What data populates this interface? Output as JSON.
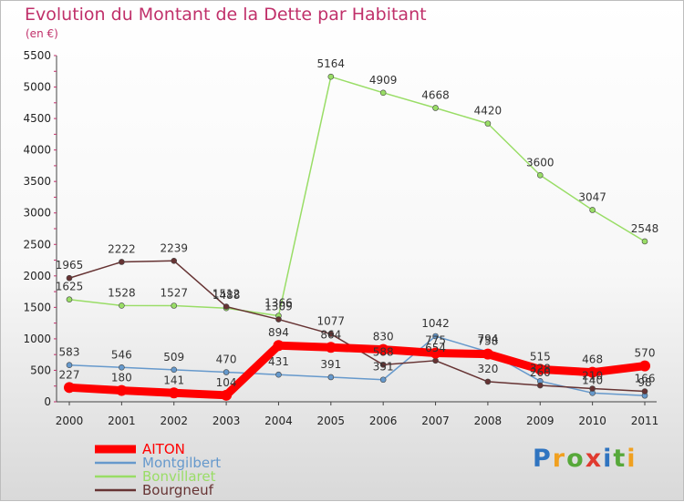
{
  "chart_data": {
    "type": "line",
    "title": "Evolution du Montant de la Dette par Habitant",
    "subtitle": "(en €)",
    "xlabel": "",
    "ylabel": "",
    "x": [
      "2000",
      "2001",
      "2002",
      "2003",
      "2004",
      "2005",
      "2006",
      "2007",
      "2008",
      "2009",
      "2010",
      "2011"
    ],
    "ylim": [
      0,
      5500
    ],
    "yticks": [
      0,
      500,
      1000,
      1500,
      2000,
      2500,
      3000,
      3500,
      4000,
      4500,
      5000,
      5500
    ],
    "grid": false,
    "legend_position": "bottom-left",
    "series": [
      {
        "name": "AITON",
        "color": "#ff0000",
        "emphasis": true,
        "values": [
          227,
          180,
          141,
          104,
          894,
          864,
          830,
          775,
          758,
          515,
          468,
          570
        ]
      },
      {
        "name": "Montgilbert",
        "color": "#6699cc",
        "values": [
          583,
          546,
          509,
          470,
          431,
          391,
          351,
          1042,
          794,
          328,
          140,
          98
        ]
      },
      {
        "name": "Bonvillaret",
        "color": "#99dd66",
        "values": [
          1625,
          1528,
          1527,
          1488,
          1366,
          5164,
          4909,
          4668,
          4420,
          3600,
          3047,
          2548
        ]
      },
      {
        "name": "Bourgneuf",
        "color": "#663333",
        "values": [
          1965,
          2222,
          2239,
          1512,
          1309,
          1077,
          588,
          654,
          320,
          260,
          210,
          166
        ]
      }
    ]
  },
  "logo": {
    "letters": [
      "P",
      "r",
      "o",
      "x",
      "i",
      "t",
      "i"
    ],
    "colors": [
      "#2f74c0",
      "#f0a020",
      "#57a83a",
      "#e03a2f",
      "#2f74c0",
      "#57a83a",
      "#f0a020"
    ]
  }
}
